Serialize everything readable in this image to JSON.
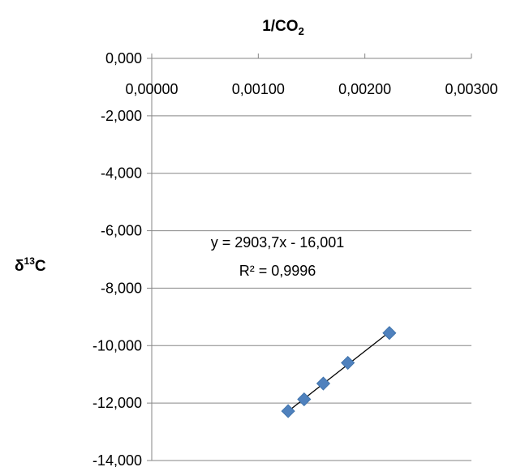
{
  "chart_data": {
    "type": "scatter",
    "title": "",
    "xlabel": {
      "text": "1/CO",
      "subscript": "2"
    },
    "ylabel": {
      "prefix": "δ",
      "superscript": "13",
      "suffix": "C"
    },
    "xlim": [
      0,
      0.003
    ],
    "ylim": [
      -14,
      0
    ],
    "x_axis_position": "top",
    "x_ticks": [
      {
        "value": 0,
        "label": "0,00000"
      },
      {
        "value": 0.001,
        "label": "0,00100"
      },
      {
        "value": 0.002,
        "label": "0,00200"
      },
      {
        "value": 0.003,
        "label": "0,00300"
      }
    ],
    "y_ticks": [
      {
        "value": 0,
        "label": "0,000"
      },
      {
        "value": -2,
        "label": "-2,000"
      },
      {
        "value": -4,
        "label": "-4,000"
      },
      {
        "value": -6,
        "label": "-6,000"
      },
      {
        "value": -8,
        "label": "-8,000"
      },
      {
        "value": -10,
        "label": "-10,000"
      },
      {
        "value": -12,
        "label": "-12,000"
      },
      {
        "value": -14,
        "label": "-14,000"
      }
    ],
    "grid": {
      "horizontal": true,
      "vertical": false
    },
    "series": [
      {
        "marker": "diamond",
        "color": "#4F81BD",
        "points": [
          {
            "x": 0.00128,
            "y": -12.28
          },
          {
            "x": 0.00143,
            "y": -11.87
          },
          {
            "x": 0.00161,
            "y": -11.32
          },
          {
            "x": 0.00184,
            "y": -10.6
          },
          {
            "x": 0.00223,
            "y": -9.56
          }
        ]
      }
    ],
    "trendline": {
      "type": "linear",
      "slope": 2903.7,
      "intercept": -16.001,
      "x_range": [
        0.00128,
        0.00223
      ],
      "color": "#000000",
      "equation_label": "y = 2903,7x - 16,001",
      "r2_label": "R² = 0,9996"
    },
    "colors": {
      "axis": "#868686",
      "grid": "#868686",
      "text": "#000000"
    }
  }
}
